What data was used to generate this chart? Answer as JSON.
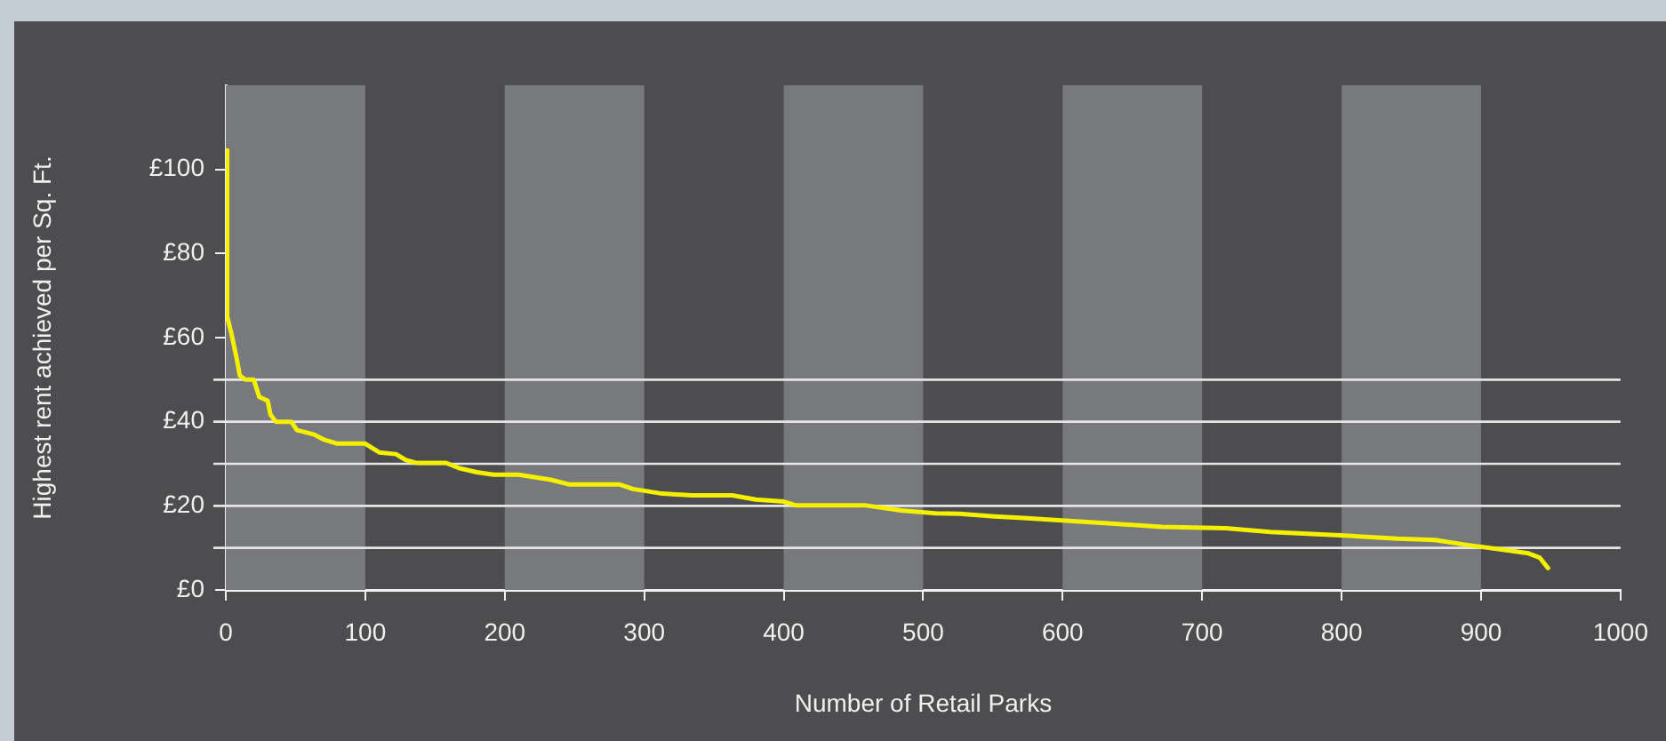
{
  "chart_data": {
    "type": "line",
    "xlabel": "Number of Retail Parks",
    "ylabel": "Highest rent achieved per Sq. Ft.",
    "xlim": [
      0,
      1000
    ],
    "xticks": [
      0,
      100,
      200,
      300,
      400,
      500,
      600,
      700,
      800,
      900,
      1000
    ],
    "ylim": [
      0,
      120
    ],
    "yticks": [
      {
        "value": 0,
        "label": "£0"
      },
      {
        "value": 20,
        "label": "£20"
      },
      {
        "value": 40,
        "label": "£40"
      },
      {
        "value": 60,
        "label": "£60"
      },
      {
        "value": 80,
        "label": "£80"
      },
      {
        "value": 100,
        "label": "£100"
      }
    ],
    "grid": false,
    "legend": false,
    "marker": "none",
    "line_style": "solid",
    "bands": [
      {
        "axis": "x",
        "from": 0,
        "to": 100,
        "color": "#78797c"
      },
      {
        "axis": "x",
        "from": 200,
        "to": 300,
        "color": "#78797c"
      },
      {
        "axis": "x",
        "from": 400,
        "to": 500,
        "color": "#78797c"
      },
      {
        "axis": "x",
        "from": 600,
        "to": 700,
        "color": "#78797c"
      },
      {
        "axis": "x",
        "from": 800,
        "to": 900,
        "color": "#78797c"
      }
    ],
    "ref_lines": [
      {
        "axis": "y",
        "value": 10,
        "color": "#e6e6e6"
      },
      {
        "axis": "y",
        "value": 20,
        "color": "#e6e6e6"
      },
      {
        "axis": "y",
        "value": 30,
        "color": "#e6e6e6"
      },
      {
        "axis": "y",
        "value": 40,
        "color": "#e6e6e6"
      },
      {
        "axis": "y",
        "value": 50,
        "color": "#e6e6e6"
      }
    ],
    "series": [
      {
        "color": "#f5f000",
        "x": [
          0,
          1,
          4,
          8,
          10,
          14,
          20,
          24,
          30,
          32,
          36,
          47,
          51,
          63,
          70,
          80,
          100,
          110,
          122,
          129,
          137,
          158,
          167,
          180,
          192,
          210,
          233,
          246,
          282,
          292,
          313,
          334,
          363,
          380,
          400,
          409,
          459,
          484,
          509,
          526,
          551,
          572,
          597,
          630,
          671,
          717,
          749,
          799,
          840,
          867,
          888,
          917,
          934,
          942,
          948
        ],
        "values": [
          104.5,
          65,
          61,
          54.7,
          51,
          50,
          50,
          45.9,
          45,
          41.7,
          40,
          40,
          38,
          37,
          35.8,
          34.8,
          34.8,
          32.7,
          32.3,
          30.9,
          30.2,
          30.2,
          29,
          28,
          27.4,
          27.4,
          26.2,
          25.1,
          25.1,
          24,
          22.9,
          22.5,
          22.5,
          21.5,
          21,
          20.1,
          20.1,
          18.9,
          18.2,
          18.1,
          17.5,
          17.1,
          16.6,
          15.9,
          15,
          14.7,
          13.8,
          13,
          12.2,
          11.9,
          10.8,
          9.5,
          8.7,
          7.7,
          5.2
        ]
      }
    ]
  }
}
